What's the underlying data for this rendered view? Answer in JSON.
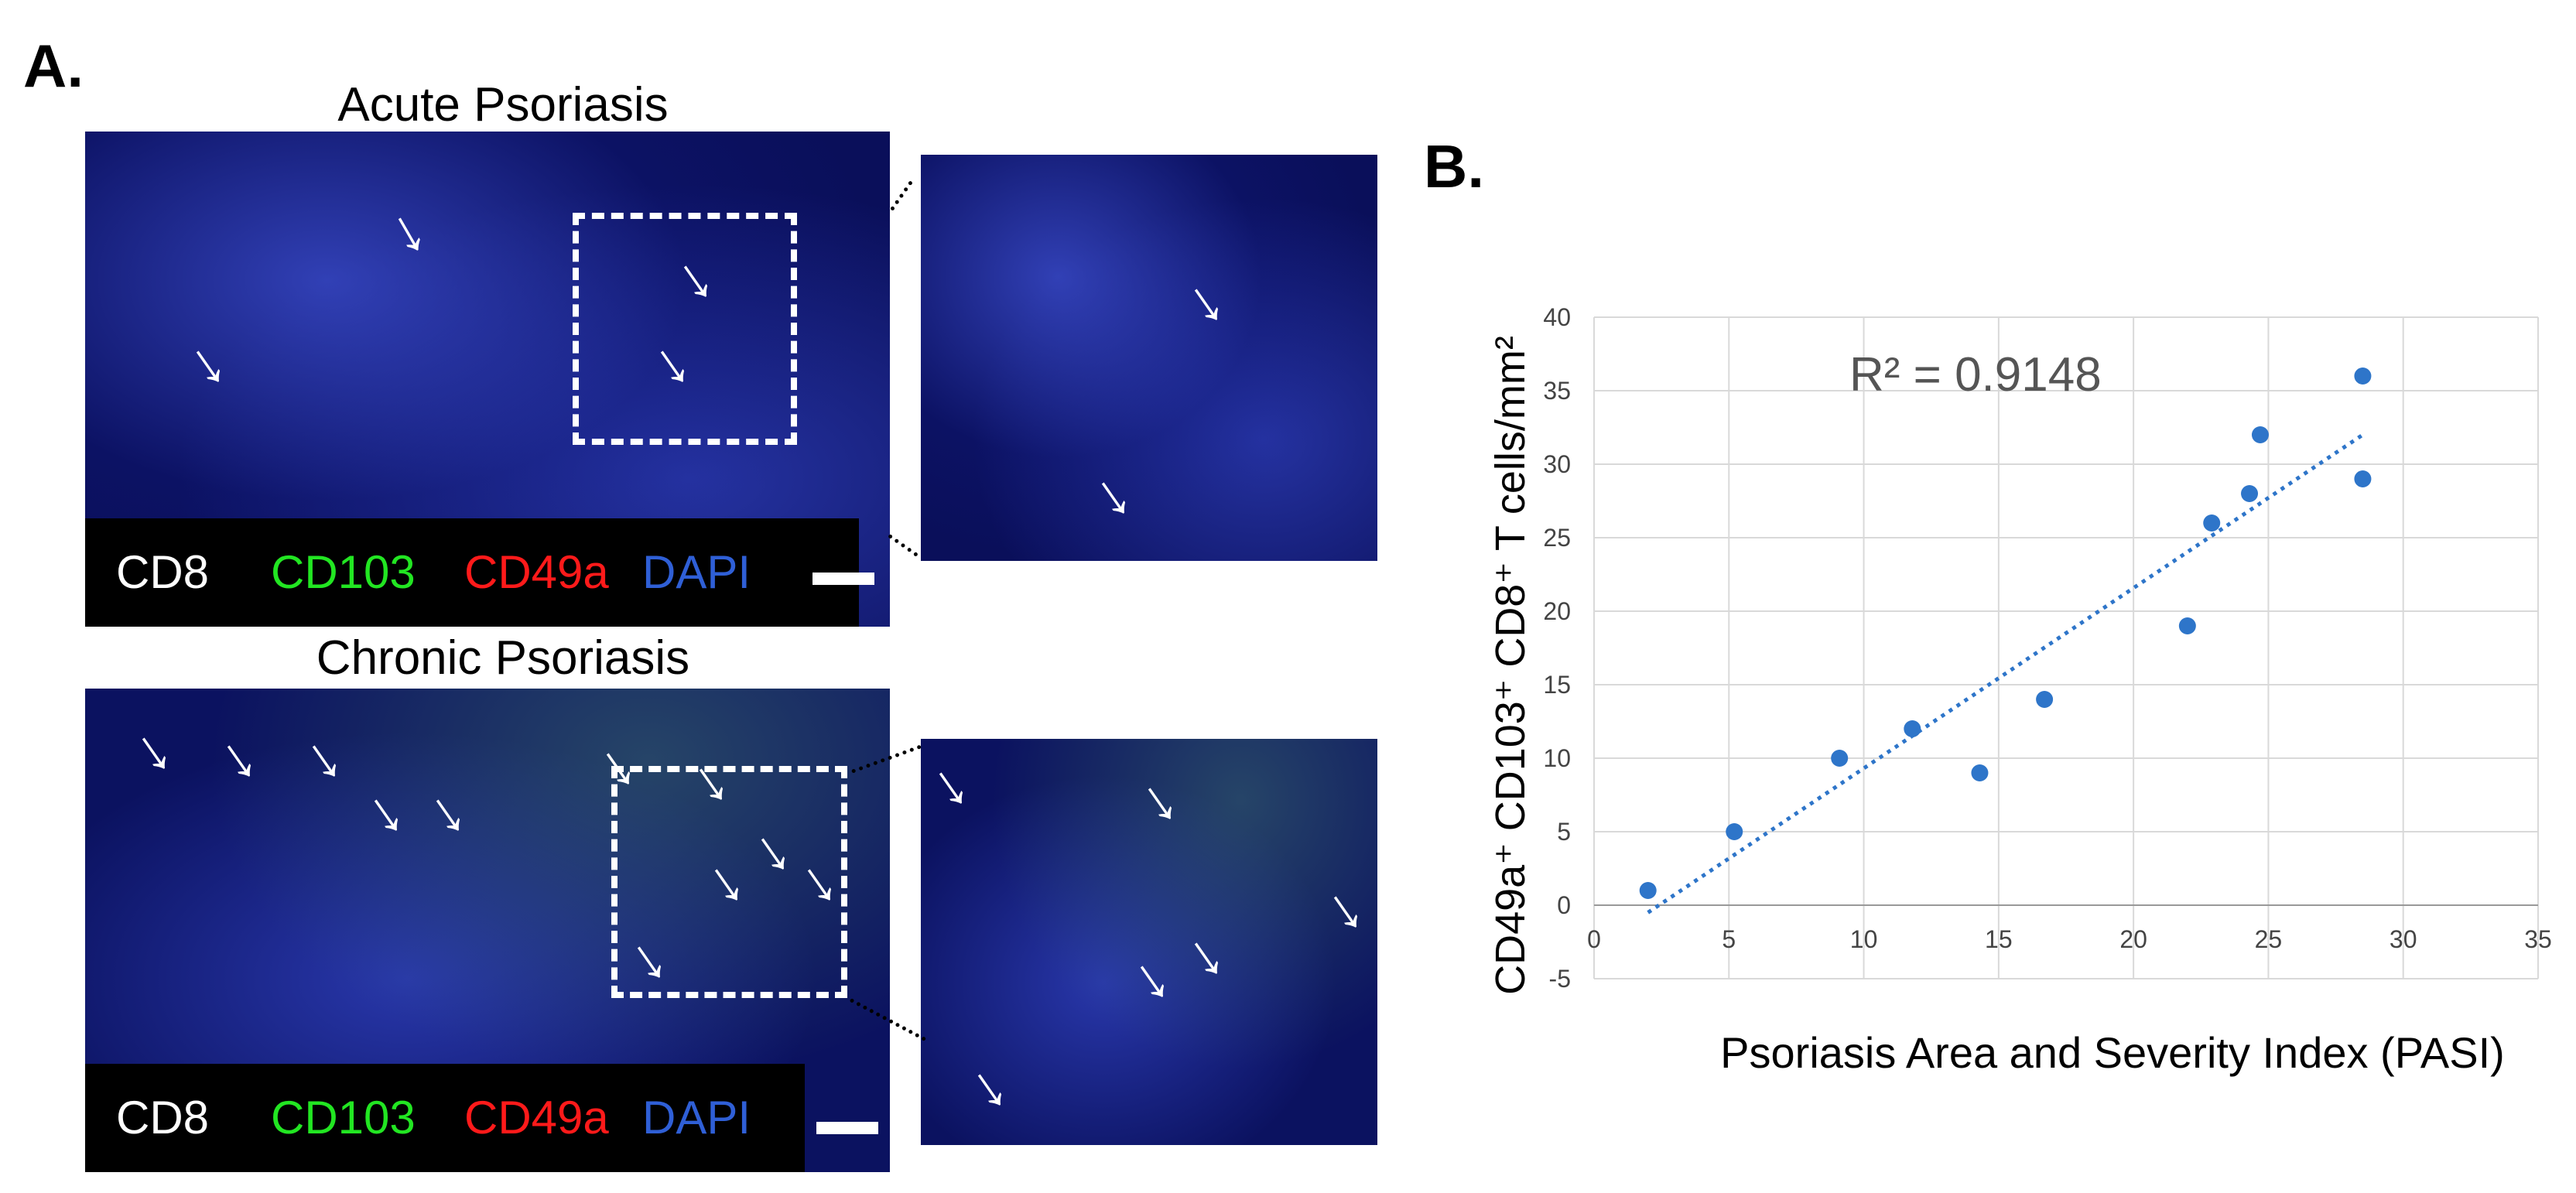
{
  "panel_a": {
    "letter": "A.",
    "acute": {
      "title": "Acute Psoriasis",
      "legend": [
        "CD8",
        "CD103",
        "CD49a",
        "DAPI"
      ]
    },
    "chronic": {
      "title": "Chronic Psoriasis",
      "legend": [
        "CD8",
        "CD103",
        "CD49a",
        "DAPI"
      ]
    },
    "legend_colors": [
      "#ffffff",
      "#22e622",
      "#ff1a1a",
      "#2f5fd6"
    ]
  },
  "panel_b": {
    "letter": "B."
  },
  "chart_data": {
    "type": "scatter",
    "title": "",
    "xlabel": "Psoriasis Area and Severity Index (PASI)",
    "ylabel": "CD49a⁺ CD103⁺ CD8⁺ T cells/mm²",
    "xlim": [
      0,
      35
    ],
    "ylim": [
      -5,
      40
    ],
    "xticks": [
      0,
      5,
      10,
      15,
      20,
      25,
      30,
      35
    ],
    "yticks": [
      -5,
      0,
      5,
      10,
      15,
      20,
      25,
      30,
      35,
      40
    ],
    "grid": true,
    "annotation": "R² = 0.9148",
    "point_color": "#2e75c9",
    "trendline_color": "#2e75c9",
    "points": [
      {
        "x": 2.0,
        "y": 1
      },
      {
        "x": 5.2,
        "y": 5
      },
      {
        "x": 9.1,
        "y": 10
      },
      {
        "x": 11.8,
        "y": 12
      },
      {
        "x": 14.3,
        "y": 9
      },
      {
        "x": 16.7,
        "y": 14
      },
      {
        "x": 22.0,
        "y": 19
      },
      {
        "x": 22.9,
        "y": 26
      },
      {
        "x": 24.3,
        "y": 28
      },
      {
        "x": 24.7,
        "y": 32
      },
      {
        "x": 28.5,
        "y": 36
      },
      {
        "x": 28.5,
        "y": 29
      }
    ],
    "trendline": {
      "x_start": 2.0,
      "y_start": -0.5,
      "x_end": 28.5,
      "y_end": 32
    }
  }
}
